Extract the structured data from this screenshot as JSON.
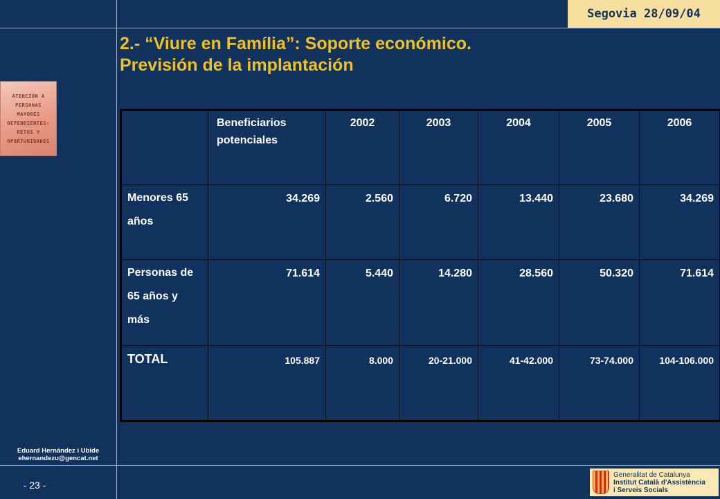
{
  "header": {
    "date_label": "Segovia 28/09/04",
    "title_line1": "2.- “Viure en Família”: Soporte económico.",
    "title_line2": "Previsión de la implantación"
  },
  "sidebar": {
    "logo_lines": [
      "ATENCIÓN A",
      "PERSONAS",
      "MAYORES",
      "DEPENDIENTES:",
      "RETOS Y",
      "OPORTUNIDADES"
    ],
    "author_name": "Eduard Hernández i Ubide",
    "author_email": "ehernandezu@gencat.net",
    "page_number": "- 23 -"
  },
  "footer_logo": {
    "line1": "Generalitat de Catalunya",
    "line2": "Institut Català d'Assistència",
    "line3": "i Serveis Socials"
  },
  "table": {
    "columns": [
      "",
      "Beneficiarios potenciales",
      "2002",
      "2003",
      "2004",
      "2005",
      "2006"
    ],
    "rows": [
      {
        "label": "Menores 65 años",
        "values": [
          "34.269",
          "2.560",
          "6.720",
          "13.440",
          "23.680",
          "34.269"
        ]
      },
      {
        "label": "Personas de 65 años y más",
        "values": [
          "71.614",
          "5.440",
          "14.280",
          "28.560",
          "50.320",
          "71.614"
        ]
      },
      {
        "label": "TOTAL",
        "values": [
          "105.887",
          "8.000",
          "20-21.000",
          "41-42.000",
          "73-74.000",
          "104-106.000"
        ]
      }
    ]
  },
  "colors": {
    "background": "#12325e",
    "title": "#f0c020",
    "date_badge": "#f7dfa0",
    "text": "#ffffff"
  }
}
